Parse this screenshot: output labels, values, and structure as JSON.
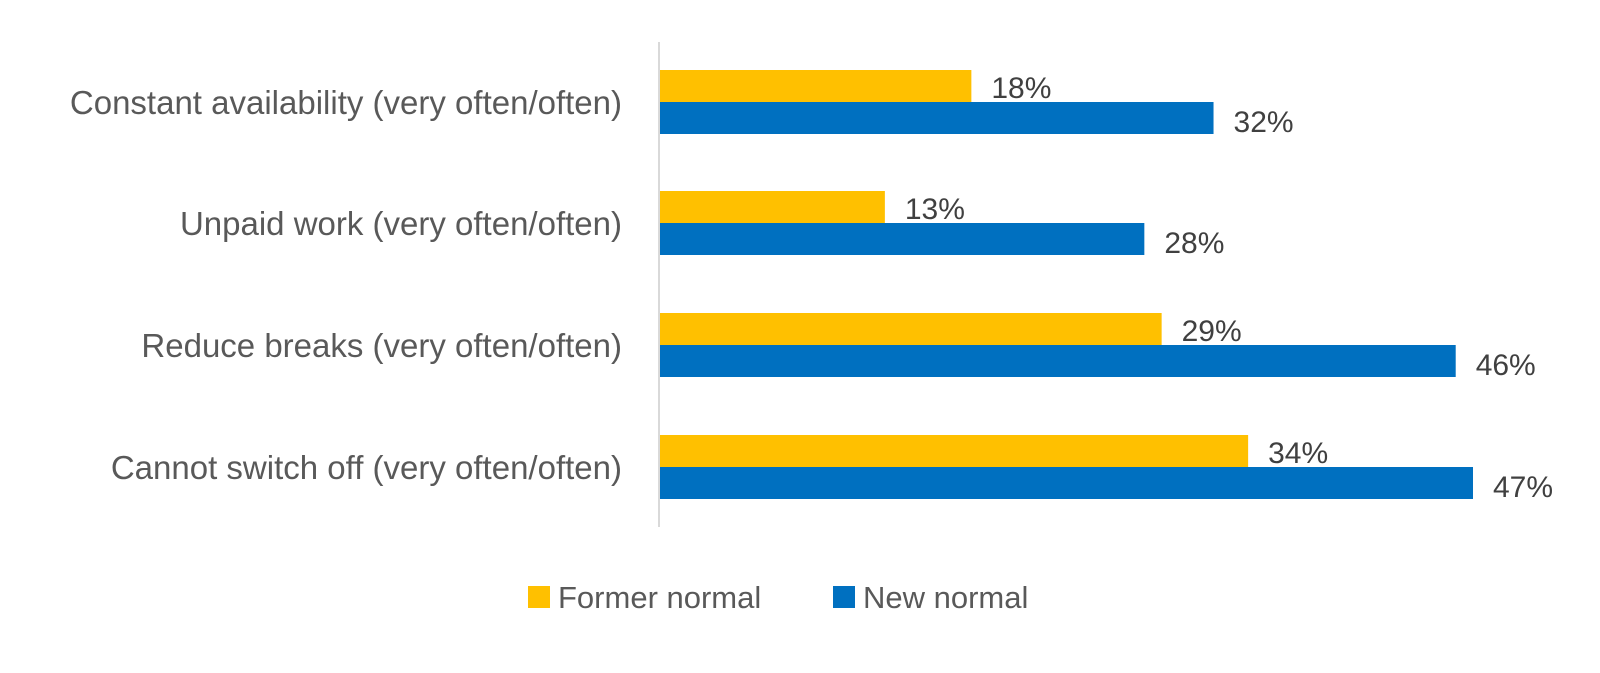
{
  "chart_data": {
    "type": "bar",
    "orientation": "horizontal",
    "categories": [
      "Constant availability (very often/often)",
      "Unpaid work (very often/often)",
      "Reduce breaks (very often/often)",
      "Cannot switch off (very often/often)"
    ],
    "series": [
      {
        "name": "Former normal",
        "color": "#FFC000",
        "values": [
          18,
          13,
          29,
          34
        ],
        "labels": [
          "18%",
          "13%",
          "29%",
          "34%"
        ]
      },
      {
        "name": "New normal",
        "color": "#0070C0",
        "values": [
          32,
          28,
          46,
          47
        ],
        "labels": [
          "32%",
          "28%",
          "46%",
          "47%"
        ]
      }
    ],
    "unit": "%",
    "xlim": [
      0,
      50
    ],
    "grid": false,
    "legend_position": "bottom"
  }
}
